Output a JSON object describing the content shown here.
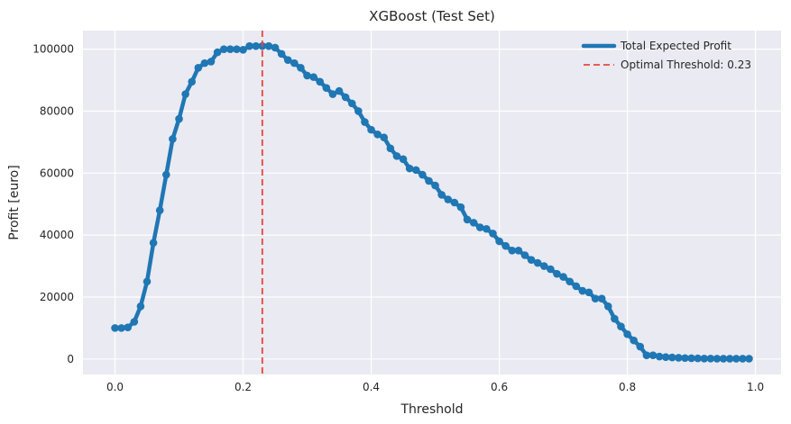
{
  "chart_data": {
    "type": "line",
    "title": "XGBoost (Test Set)",
    "xlabel": "Threshold",
    "ylabel": "Profit [euro]",
    "xlim": [
      -0.05,
      1.04
    ],
    "ylim": [
      -5000,
      106000
    ],
    "x_ticks": [
      0.0,
      0.2,
      0.4,
      0.6,
      0.8,
      1.0
    ],
    "x_tick_labels": [
      "0.0",
      "0.2",
      "0.4",
      "0.6",
      "0.8",
      "1.0"
    ],
    "y_ticks": [
      0,
      20000,
      40000,
      60000,
      80000,
      100000
    ],
    "y_tick_labels": [
      "0",
      "20000",
      "40000",
      "60000",
      "80000",
      "100000"
    ],
    "grid": true,
    "legend_position": "top-right",
    "colors": {
      "background": "#eaeaf2",
      "grid": "#ffffff",
      "series": "#1f77b4",
      "optimal": "#e8453c"
    },
    "series": [
      {
        "name": "Total Expected Profit",
        "x": [
          0.0,
          0.01,
          0.02,
          0.03,
          0.04,
          0.05,
          0.06,
          0.07,
          0.08,
          0.09,
          0.1,
          0.11,
          0.12,
          0.13,
          0.14,
          0.15,
          0.16,
          0.17,
          0.18,
          0.19,
          0.2,
          0.21,
          0.22,
          0.23,
          0.24,
          0.25,
          0.26,
          0.27,
          0.28,
          0.29,
          0.3,
          0.31,
          0.32,
          0.33,
          0.34,
          0.35,
          0.36,
          0.37,
          0.38,
          0.39,
          0.4,
          0.41,
          0.42,
          0.43,
          0.44,
          0.45,
          0.46,
          0.47,
          0.48,
          0.49,
          0.5,
          0.51,
          0.52,
          0.53,
          0.54,
          0.55,
          0.56,
          0.57,
          0.58,
          0.59,
          0.6,
          0.61,
          0.62,
          0.63,
          0.64,
          0.65,
          0.66,
          0.67,
          0.68,
          0.69,
          0.7,
          0.71,
          0.72,
          0.73,
          0.74,
          0.75,
          0.76,
          0.77,
          0.78,
          0.79,
          0.8,
          0.81,
          0.82,
          0.83,
          0.84,
          0.85,
          0.86,
          0.87,
          0.88,
          0.89,
          0.9,
          0.91,
          0.92,
          0.93,
          0.94,
          0.95,
          0.96,
          0.97,
          0.98,
          0.99
        ],
        "values": [
          10000,
          10000,
          10200,
          12000,
          17000,
          25000,
          37500,
          48000,
          59500,
          71000,
          77500,
          85500,
          89500,
          94000,
          95500,
          96000,
          99000,
          100000,
          100000,
          100000,
          99800,
          101000,
          101000,
          101000,
          101000,
          100500,
          98500,
          96500,
          95500,
          94000,
          91500,
          91000,
          89500,
          87500,
          85500,
          86500,
          84500,
          82500,
          80000,
          76500,
          74000,
          72500,
          71500,
          68000,
          65500,
          64500,
          61500,
          61000,
          59500,
          57500,
          56000,
          53000,
          51500,
          50500,
          49000,
          45000,
          44000,
          42500,
          42000,
          40500,
          38000,
          36500,
          35000,
          35000,
          33500,
          32000,
          31000,
          30000,
          29000,
          27500,
          26500,
          25000,
          23500,
          22000,
          21500,
          19500,
          19500,
          17000,
          13000,
          10500,
          8000,
          6000,
          4000,
          1200,
          1200,
          800,
          600,
          500,
          400,
          300,
          250,
          200,
          150,
          150,
          100,
          100,
          100,
          100,
          100,
          100
        ]
      }
    ],
    "optimal_threshold": {
      "label": "Optimal Threshold: 0.23",
      "x": 0.23
    }
  }
}
